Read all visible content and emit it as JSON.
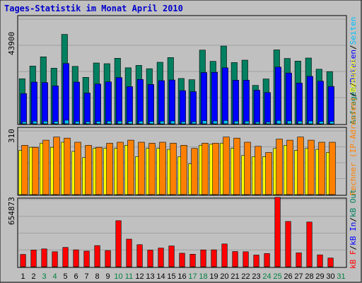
{
  "chart_data": {
    "type": "bar",
    "title": "Tages-Statistik im Monat April 2010",
    "categories": [
      "1",
      "2",
      "3",
      "4",
      "5",
      "6",
      "7",
      "8",
      "9",
      "10",
      "11",
      "12",
      "13",
      "14",
      "15",
      "16",
      "17",
      "18",
      "19",
      "20",
      "21",
      "22",
      "23",
      "24",
      "25",
      "26",
      "27",
      "28",
      "29",
      "30",
      "31"
    ],
    "weekend_days": [
      "3",
      "4",
      "10",
      "11",
      "17",
      "18",
      "24",
      "25",
      "31"
    ],
    "colors": {
      "background": "#c0c0c0",
      "plot_background": "#c0c0c0",
      "gridline": "#a0a0a0",
      "title": "#0000cc",
      "weekday_label": "#000000",
      "weekend_label": "#008040"
    },
    "panels": [
      {
        "ytick": "43900",
        "ymax": 43900,
        "series": [
          {
            "name": "Anfragen",
            "color": "#008060",
            "values": [
              18900,
              24200,
              28100,
              23300,
              37500,
              24100,
              19500,
              25500,
              25200,
              27500,
              23500,
              24500,
              23100,
              25800,
              27800,
              19000,
              18500,
              30900,
              26200,
              32600,
              25700,
              26700,
              16100,
              18800,
              31000,
              27400,
              26300,
              27600,
              22900,
              21900,
              0
            ]
          },
          {
            "name": "Dateien",
            "color": "#0000ff",
            "values": [
              12700,
              17500,
              17300,
              15900,
              25300,
              17500,
              12900,
              16700,
              17600,
              19400,
              15600,
              18600,
              16500,
              18100,
              18400,
              13900,
              13500,
              21500,
              21600,
              23500,
              18300,
              18300,
              14100,
              13100,
              23800,
              21300,
              17100,
              19900,
              17900,
              15700,
              0
            ]
          },
          {
            "name": "Seiten",
            "color": "#00c0ff",
            "values": [
              900,
              1100,
              1100,
              1000,
              1500,
              1000,
              900,
              1000,
              1100,
              1100,
              1000,
              1100,
              1000,
              1100,
              1200,
              900,
              900,
              1300,
              1200,
              1400,
              1100,
              1100,
              800,
              800,
              1400,
              1200,
              1100,
              1200,
              1000,
              1000,
              0
            ]
          }
        ]
      },
      {
        "ytick": "310",
        "ymax": 310,
        "series": [
          {
            "name": "Besuche",
            "color": "#ffff00",
            "values": [
              215,
              230,
              250,
              230,
              255,
              210,
              180,
              225,
              225,
              225,
              240,
              185,
              225,
              225,
              220,
              185,
              150,
              240,
              245,
              250,
              225,
              190,
              185,
              185,
              225,
              240,
              215,
              225,
              220,
              205,
              0
            ]
          },
          {
            "name": "Rechner (IP-Adressen)",
            "color": "#ff8000",
            "values": [
              240,
              230,
              265,
              280,
              275,
              255,
              240,
              230,
              250,
              255,
              265,
              255,
              250,
              255,
              250,
              240,
              225,
              250,
              250,
              280,
              275,
              255,
              235,
              205,
              270,
              265,
              280,
              265,
              255,
              255,
              0
            ]
          }
        ]
      },
      {
        "ytick": "654873",
        "ymax": 654873,
        "series": [
          {
            "name": "kB F",
            "color": "#ff0000",
            "values": [
              120000,
              163000,
              174000,
              146000,
              188000,
              165000,
              152000,
              206000,
              158000,
              449000,
              269000,
              215000,
              162000,
              182000,
              203000,
              132000,
              122000,
              164000,
              165000,
              222000,
              148000,
              146000,
              114000,
              129000,
              676000,
              441000,
              135000,
              436000,
              116000,
              85000,
              0
            ]
          }
        ]
      }
    ],
    "side_labels": {
      "top": [
        "Anfragen",
        "/",
        "Dateien",
        "/",
        "Seiten"
      ],
      "middle": [
        "Rechner (IP-Adressen)",
        "/",
        "Besuche"
      ],
      "bottom": [
        "kB F",
        "/",
        "kB In",
        "/",
        "kB Out"
      ]
    }
  }
}
